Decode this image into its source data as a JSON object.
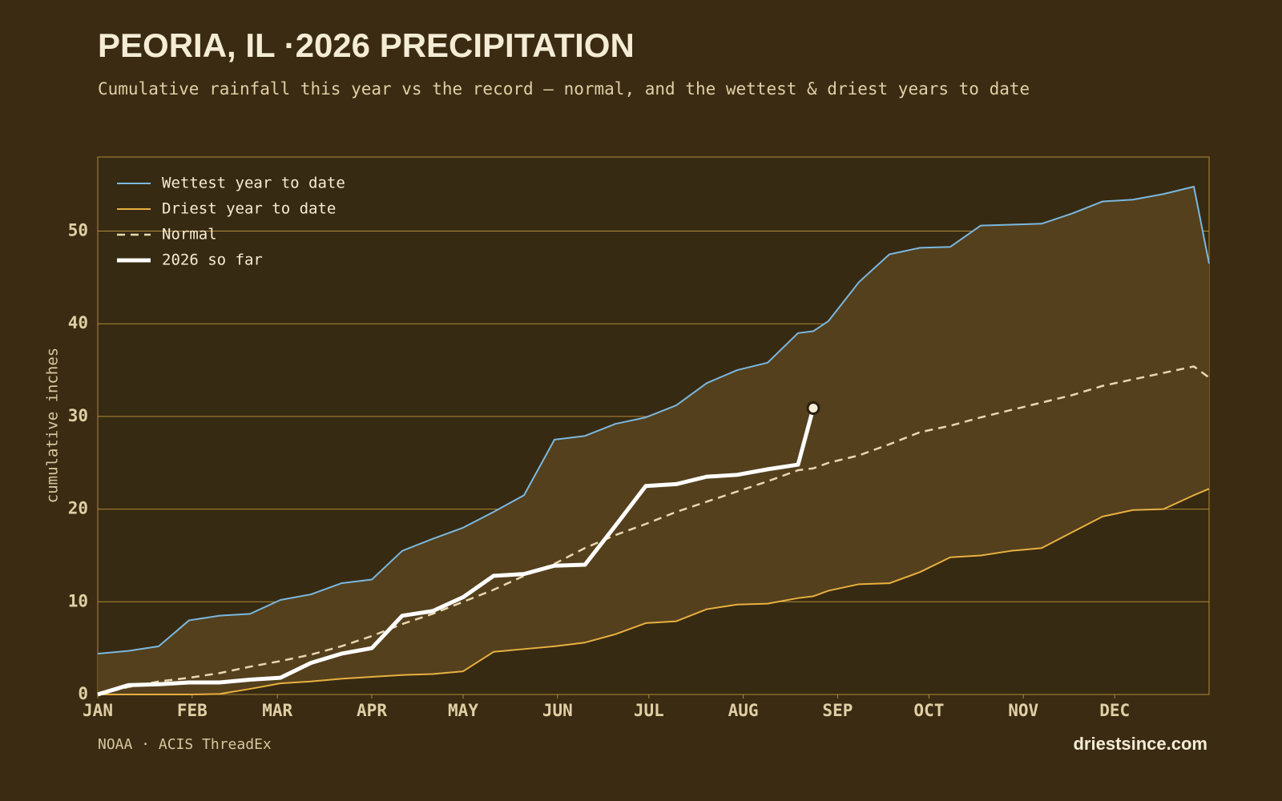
{
  "chart_data": {
    "type": "line",
    "title": "PEORIA, IL ·2026 PRECIPITATION",
    "subtitle": "Cumulative rainfall this year vs the record — normal, and the wettest & driest years to date",
    "y_label": "cumulative inches",
    "source": "NOAA · ACIS ThreadEx",
    "brand": "driestsince.com",
    "x": [
      1,
      11,
      21,
      31,
      41,
      51,
      61,
      71,
      81,
      91,
      101,
      111,
      121,
      131,
      141,
      151,
      161,
      171,
      181,
      191,
      201,
      211,
      221,
      231,
      236,
      241,
      251,
      261,
      271,
      281,
      291,
      301,
      311,
      321,
      331,
      341,
      351,
      361,
      366
    ],
    "xlim": [
      1,
      366
    ],
    "xticks": [
      {
        "value": 1,
        "label": "JAN"
      },
      {
        "value": 32,
        "label": "FEB"
      },
      {
        "value": 60,
        "label": "MAR"
      },
      {
        "value": 91,
        "label": "APR"
      },
      {
        "value": 121,
        "label": "MAY"
      },
      {
        "value": 152,
        "label": "JUN"
      },
      {
        "value": 182,
        "label": "JUL"
      },
      {
        "value": 213,
        "label": "AUG"
      },
      {
        "value": 244,
        "label": "SEP"
      },
      {
        "value": 274,
        "label": "OCT"
      },
      {
        "value": 305,
        "label": "NOV"
      },
      {
        "value": 335,
        "label": "DEC"
      }
    ],
    "ylim": [
      0,
      58
    ],
    "yticks": [
      0,
      10,
      20,
      30,
      40,
      50
    ],
    "grid": true,
    "legend": "top-left",
    "band_between": [
      0,
      1
    ],
    "band_color": "#54401d",
    "series": [
      {
        "name": "Wettest year to date",
        "color": "#7ab8e0",
        "width": 2,
        "values": [
          4.4,
          4.7,
          5.2,
          8.0,
          8.5,
          8.7,
          10.2,
          10.8,
          12.0,
          12.4,
          15.5,
          16.8,
          18.0,
          19.7,
          21.5,
          27.5,
          27.9,
          29.2,
          29.9,
          31.2,
          33.6,
          35.0,
          35.8,
          39.0,
          39.2,
          40.3,
          44.5,
          47.5,
          48.2,
          48.3,
          50.6,
          50.7,
          50.8,
          51.9,
          53.2,
          53.4,
          54.0,
          54.8,
          46.5
        ]
      },
      {
        "name": "Driest year to date",
        "color": "#e8b040",
        "width": 2,
        "values": [
          0,
          0,
          0,
          0,
          0.05,
          0.6,
          1.2,
          1.4,
          1.7,
          1.9,
          2.1,
          2.2,
          2.5,
          4.6,
          4.9,
          5.2,
          5.6,
          6.5,
          7.7,
          7.9,
          9.2,
          9.7,
          9.8,
          10.4,
          10.6,
          11.2,
          11.9,
          12.0,
          13.2,
          14.8,
          15.0,
          15.5,
          15.8,
          17.5,
          19.2,
          19.9,
          20.0,
          21.5,
          22.2
        ]
      },
      {
        "name": "Normal",
        "color": "#e8d8b0",
        "width": 2.5,
        "dash": true,
        "values": [
          0,
          0.8,
          1.4,
          1.8,
          2.3,
          3.0,
          3.6,
          4.3,
          5.2,
          6.3,
          7.6,
          8.7,
          10.0,
          11.3,
          12.8,
          14.1,
          15.8,
          17.2,
          18.4,
          19.7,
          20.8,
          21.9,
          23.0,
          24.2,
          24.4,
          25.0,
          25.8,
          27.0,
          28.3,
          29.0,
          29.9,
          30.7,
          31.5,
          32.3,
          33.3,
          34.0,
          34.7,
          35.4,
          34.2
        ]
      },
      {
        "name": "2026 so far",
        "color": "#ffffff",
        "width": 5,
        "end_marker": true,
        "values": [
          0,
          1.0,
          1.1,
          1.3,
          1.3,
          1.6,
          1.8,
          3.4,
          4.4,
          5.0,
          8.5,
          9.0,
          10.5,
          12.8,
          13.0,
          13.9,
          14.0,
          18.2,
          22.5,
          22.7,
          23.5,
          23.7,
          24.3,
          24.8,
          30.9,
          null,
          null,
          null,
          null,
          null,
          null,
          null,
          null,
          null,
          null,
          null,
          null,
          null,
          null
        ]
      }
    ]
  }
}
